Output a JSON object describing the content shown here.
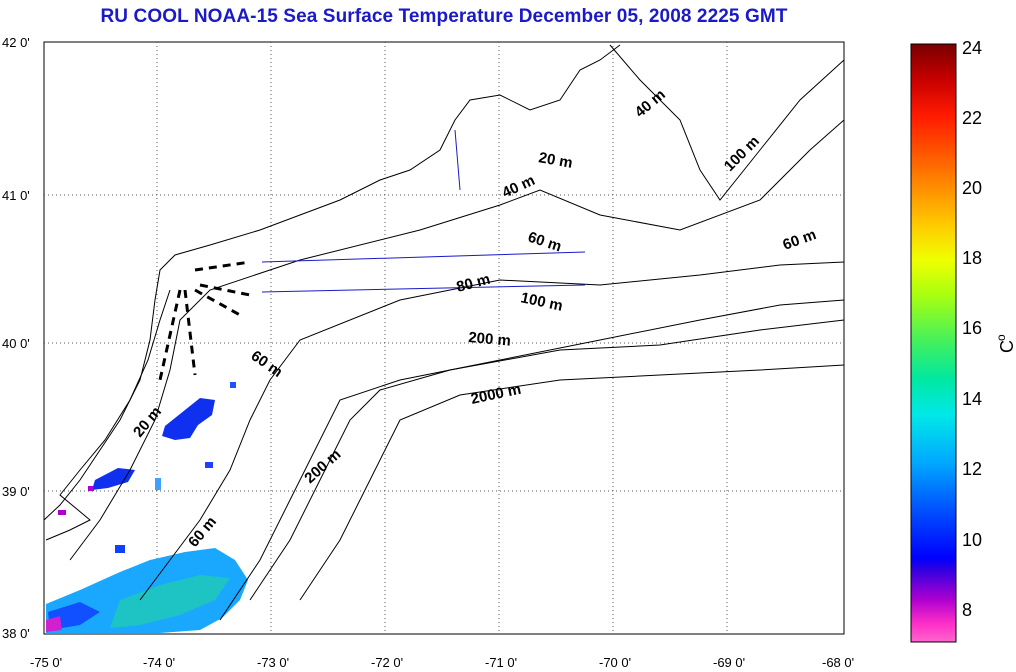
{
  "title": "RU COOL  NOAA-15 Sea Surface Temperature December 05, 2008 2225 GMT",
  "x_ticks": [
    "-75 0'",
    "-74 0'",
    "-73 0'",
    "-72 0'",
    "-71 0'",
    "-70 0'",
    "-69 0'",
    "-68 0'"
  ],
  "y_ticks": [
    "42 0'",
    "41 0'",
    "40 0'",
    "39 0'",
    "38 0'"
  ],
  "contour_labels": [
    "20 m",
    "40 m",
    "40 m",
    "100 m",
    "60 m",
    "60 m",
    "80 m",
    "100 m",
    "200 m",
    "60 m",
    "2000 m",
    "20 m",
    "200 m",
    "60 m"
  ],
  "colorbar": {
    "ticks": [
      "24",
      "22",
      "20",
      "18",
      "16",
      "14",
      "12",
      "10",
      "8"
    ],
    "unit_label": "C",
    "unit_superscript": "o",
    "colors": [
      "#7a0000",
      "#c80000",
      "#ff1a00",
      "#ff7a00",
      "#ffc800",
      "#f0ff00",
      "#a8ff10",
      "#40f060",
      "#00e8a0",
      "#00e8e8",
      "#00a8ff",
      "#0050ff",
      "#0000ff",
      "#3300e0",
      "#b000d0",
      "#ff30c8",
      "#ff66cc"
    ]
  },
  "chart_data": {
    "type": "heatmap",
    "title": "RU COOL  NOAA-15 Sea Surface Temperature December 05, 2008 2225 GMT",
    "xlim": [
      -75,
      -68
    ],
    "ylim": [
      38,
      42
    ],
    "colorbar_range": [
      7,
      24
    ],
    "colorbar_unit": "C",
    "isobath_labels_m": [
      20,
      40,
      60,
      80,
      100,
      200,
      2000
    ]
  }
}
